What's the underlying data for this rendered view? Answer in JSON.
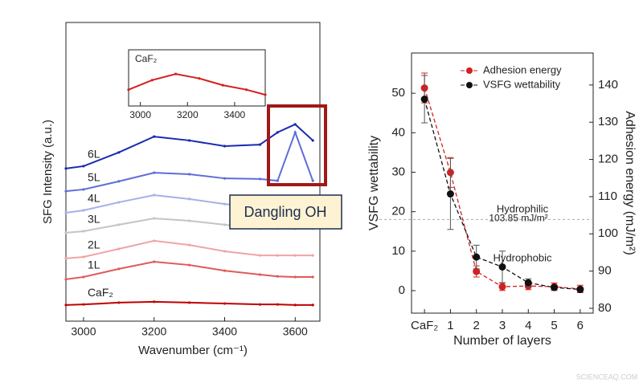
{
  "chart_data": [
    {
      "type": "line",
      "xlabel": "Wavenumber (cm⁻¹)",
      "ylabel": "SFG Intensity (a.u.)",
      "annotation": "Dangling OH",
      "x": [
        2950,
        3000,
        3100,
        3200,
        3300,
        3400,
        3500,
        3550,
        3600,
        3650
      ],
      "xlim": [
        2950,
        3670
      ],
      "xticks": [
        3000,
        3200,
        3400,
        3600
      ],
      "ylim": [
        0,
        10
      ],
      "series": [
        {
          "name": "CaF₂",
          "color": "#c00000",
          "values": [
            0.54,
            0.56,
            0.62,
            0.65,
            0.62,
            0.59,
            0.56,
            0.56,
            0.54,
            0.54
          ]
        },
        {
          "name": "1L",
          "color": "#e05a5a",
          "values": [
            1.4,
            1.48,
            1.75,
            1.99,
            1.88,
            1.69,
            1.56,
            1.5,
            1.48,
            1.48
          ]
        },
        {
          "name": "2L",
          "color": "#f0a4a4",
          "values": [
            2.1,
            2.15,
            2.42,
            2.69,
            2.55,
            2.34,
            2.2,
            2.2,
            2.2,
            2.2
          ]
        },
        {
          "name": "3L",
          "color": "#c4c4c4",
          "values": [
            2.96,
            3.01,
            3.23,
            3.44,
            3.36,
            3.23,
            3.09,
            3.09,
            3.09,
            3.09
          ]
        },
        {
          "name": "4L",
          "color": "#a6b0ea",
          "values": [
            3.63,
            3.71,
            3.98,
            4.22,
            4.09,
            3.92,
            3.82,
            3.82,
            3.82,
            3.82
          ]
        },
        {
          "name": "5L",
          "color": "#5e6ed8",
          "values": [
            4.35,
            4.41,
            4.68,
            4.97,
            4.92,
            4.78,
            4.76,
            4.7,
            6.32,
            4.7
          ]
        },
        {
          "name": "6L",
          "color": "#1a2ab0",
          "values": [
            5.11,
            5.19,
            5.65,
            6.18,
            6.05,
            5.86,
            5.91,
            6.32,
            6.59,
            6.05
          ]
        }
      ]
    },
    {
      "type": "line",
      "x": [
        2950,
        3050,
        3150,
        3250,
        3350,
        3450,
        3530
      ],
      "xlim": [
        2950,
        3530
      ],
      "xticks": [
        3000,
        3200,
        3400
      ],
      "ylim": [
        0,
        1
      ],
      "series": [
        {
          "name": "CaF₂",
          "color": "#d42020",
          "values": [
            0.29,
            0.46,
            0.57,
            0.49,
            0.37,
            0.29,
            0.2
          ]
        }
      ]
    },
    {
      "type": "line",
      "xlabel": "Number of layers",
      "ylabel": "VSFG wettability",
      "y2label": "Adhesion energy (mJ/m²)",
      "categories": [
        "CaF₂",
        "1",
        "2",
        "3",
        "4",
        "5",
        "6"
      ],
      "ylim": [
        -5.7,
        60.2
      ],
      "yticks": [
        0,
        10,
        20,
        30,
        40,
        50
      ],
      "y2lim": [
        78.7,
        148.6
      ],
      "y2ticks": [
        80,
        90,
        100,
        110,
        120,
        130,
        140
      ],
      "threshold": {
        "value": 103.85,
        "label": "103.85 mJ/m²"
      },
      "annotations": [
        "Hydrophilic",
        "Hydrophobic"
      ],
      "legend": "upper right",
      "series": [
        {
          "name": "Adhesion energy",
          "color": "#d42020",
          "axis": "y2",
          "values": [
            139.2,
            116.5,
            89.9,
            85.8,
            86,
            85.8,
            85.2
          ],
          "errors": [
            4,
            4,
            1.5,
            1,
            1,
            1,
            1
          ]
        },
        {
          "name": "VSFG wettability",
          "color": "#111111",
          "values": [
            48.5,
            24.5,
            8.5,
            6,
            2,
            0.8,
            0.3
          ],
          "errors": [
            6,
            9,
            3,
            4,
            1,
            0.5,
            0.5
          ]
        }
      ]
    }
  ],
  "watermark": "SCIENCEAQ.COM"
}
